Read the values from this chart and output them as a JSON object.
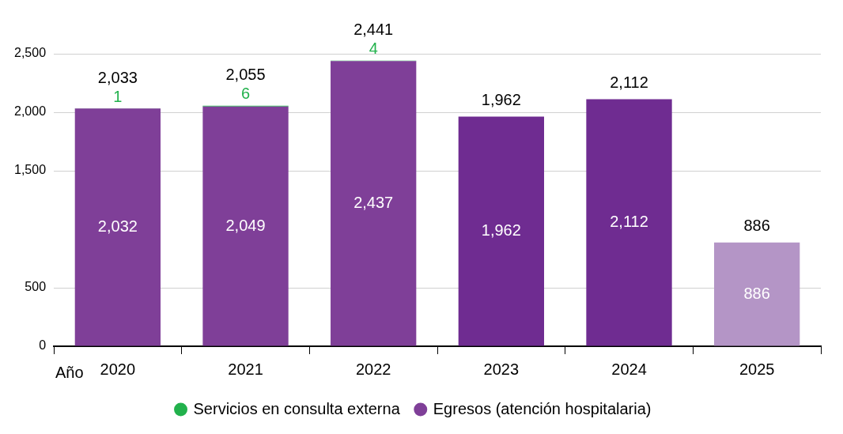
{
  "chart_data": {
    "type": "bar",
    "stacked": true,
    "categories": [
      "2020",
      "2021",
      "2022",
      "2023",
      "2024",
      "2025"
    ],
    "xlabel": "Año",
    "series": [
      {
        "name": "Egresos (atención hospitalaria)",
        "color": "#7f3f98",
        "colors": [
          "#7f3f98",
          "#7f3f98",
          "#7f3f98",
          "#6f2c91",
          "#6f2c91",
          "#b495c6"
        ],
        "values": [
          2032,
          2049,
          2437,
          1962,
          2112,
          886
        ],
        "value_labels": [
          "2,032",
          "2,049",
          "2,437",
          "1,962",
          "2,112",
          "886"
        ]
      },
      {
        "name": "Servicios en consulta externa",
        "color": "#22b14c",
        "values": [
          1,
          6,
          4,
          null,
          null,
          null
        ]
      }
    ],
    "totals": [
      "2,033",
      "2,055",
      "2,441",
      "1,962",
      "2,112",
      "886"
    ],
    "data_labels": true,
    "ylim": [
      0,
      2500
    ],
    "yticks": [
      0,
      500,
      {
        "value": 1500,
        "label": "1,500"
      },
      {
        "value": 2000,
        "label": "2,000"
      },
      {
        "value": 2500,
        "label": "2,500"
      }
    ],
    "grid": "y",
    "legend": "bottom"
  }
}
